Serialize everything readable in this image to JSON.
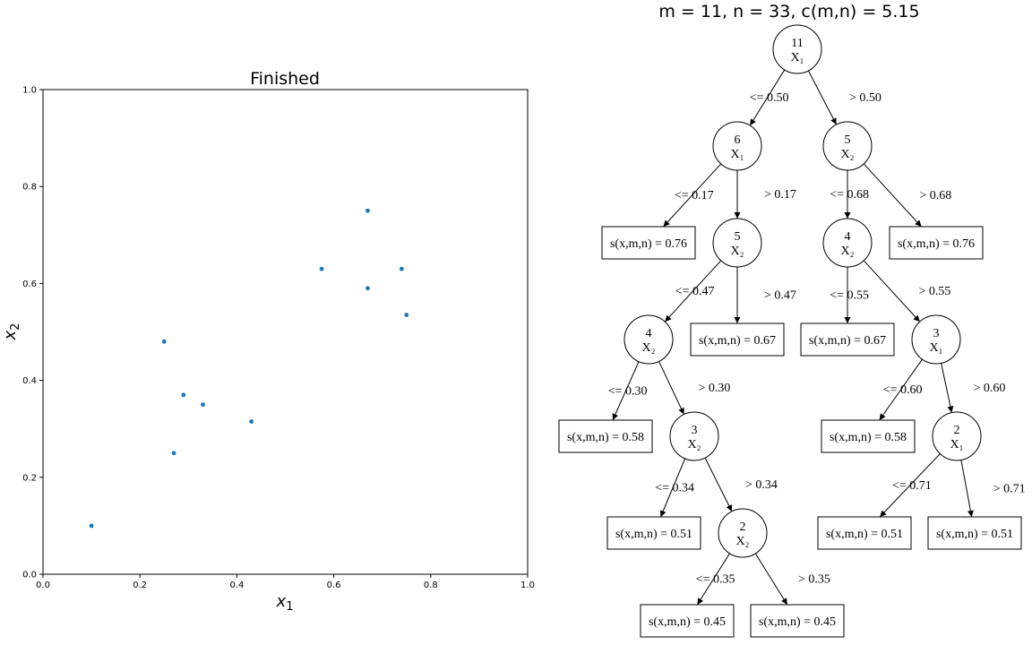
{
  "scatter": {
    "title": "Finished",
    "xlabel_base": "x",
    "xlabel_sub": "1",
    "ylabel_base": "x",
    "ylabel_sub": "2",
    "xlim": [
      0,
      1
    ],
    "ylim": [
      0,
      1
    ],
    "xticks": [
      "0.0",
      "0.2",
      "0.4",
      "0.6",
      "0.8",
      "1.0"
    ],
    "yticks": [
      "0.0",
      "0.2",
      "0.4",
      "0.6",
      "0.8",
      "1.0"
    ],
    "point_color": "#1f77b4"
  },
  "chart_data": {
    "type": "scatter",
    "title": "Finished",
    "xlabel": "x1",
    "ylabel": "x2",
    "xlim": [
      0,
      1
    ],
    "ylim": [
      0,
      1
    ],
    "grid": false,
    "points": [
      {
        "x": 0.1,
        "y": 0.1
      },
      {
        "x": 0.25,
        "y": 0.48
      },
      {
        "x": 0.27,
        "y": 0.25
      },
      {
        "x": 0.29,
        "y": 0.37
      },
      {
        "x": 0.33,
        "y": 0.35
      },
      {
        "x": 0.43,
        "y": 0.315
      },
      {
        "x": 0.575,
        "y": 0.63
      },
      {
        "x": 0.67,
        "y": 0.75
      },
      {
        "x": 0.67,
        "y": 0.59
      },
      {
        "x": 0.74,
        "y": 0.63
      },
      {
        "x": 0.75,
        "y": 0.535
      }
    ]
  },
  "tree": {
    "title": "m = 11, n = 33, c(m,n) = 5.15",
    "nodes": [
      {
        "id": "n0",
        "kind": "split",
        "count": "11",
        "var": "X₁"
      },
      {
        "id": "n1",
        "kind": "split",
        "count": "6",
        "var": "X₁"
      },
      {
        "id": "n2",
        "kind": "split",
        "count": "5",
        "var": "X₂"
      },
      {
        "id": "n3",
        "kind": "leaf",
        "text": "s(x,m,n) = 0.76"
      },
      {
        "id": "n4",
        "kind": "split",
        "count": "5",
        "var": "X₂"
      },
      {
        "id": "n5",
        "kind": "split",
        "count": "4",
        "var": "X₂"
      },
      {
        "id": "n6",
        "kind": "leaf",
        "text": "s(x,m,n) = 0.76"
      },
      {
        "id": "n7",
        "kind": "split",
        "count": "4",
        "var": "X₂"
      },
      {
        "id": "n8",
        "kind": "leaf",
        "text": "s(x,m,n) = 0.67"
      },
      {
        "id": "n9",
        "kind": "leaf",
        "text": "s(x,m,n) = 0.67"
      },
      {
        "id": "n10",
        "kind": "split",
        "count": "3",
        "var": "X₁"
      },
      {
        "id": "n11",
        "kind": "leaf",
        "text": "s(x,m,n) = 0.58"
      },
      {
        "id": "n12",
        "kind": "split",
        "count": "3",
        "var": "X₂"
      },
      {
        "id": "n13",
        "kind": "leaf",
        "text": "s(x,m,n) = 0.58"
      },
      {
        "id": "n14",
        "kind": "split",
        "count": "2",
        "var": "X₁"
      },
      {
        "id": "n15",
        "kind": "leaf",
        "text": "s(x,m,n) = 0.51"
      },
      {
        "id": "n16",
        "kind": "split",
        "count": "2",
        "var": "X₂"
      },
      {
        "id": "n17",
        "kind": "leaf",
        "text": "s(x,m,n) = 0.51"
      },
      {
        "id": "n18",
        "kind": "leaf",
        "text": "s(x,m,n) = 0.51"
      },
      {
        "id": "n19",
        "kind": "leaf",
        "text": "s(x,m,n) = 0.45"
      },
      {
        "id": "n20",
        "kind": "leaf",
        "text": "s(x,m,n) = 0.45"
      }
    ],
    "edges": [
      {
        "from": "n0",
        "to": "n1",
        "label": "<= 0.50"
      },
      {
        "from": "n0",
        "to": "n2",
        "label": "> 0.50"
      },
      {
        "from": "n1",
        "to": "n3",
        "label": "<= 0.17"
      },
      {
        "from": "n1",
        "to": "n4",
        "label": "> 0.17"
      },
      {
        "from": "n2",
        "to": "n5",
        "label": "<= 0.68"
      },
      {
        "from": "n2",
        "to": "n6",
        "label": "> 0.68"
      },
      {
        "from": "n4",
        "to": "n7",
        "label": "<= 0.47"
      },
      {
        "from": "n4",
        "to": "n8",
        "label": "> 0.47"
      },
      {
        "from": "n5",
        "to": "n9",
        "label": "<= 0.55"
      },
      {
        "from": "n5",
        "to": "n10",
        "label": "> 0.55"
      },
      {
        "from": "n7",
        "to": "n11",
        "label": "<= 0.30"
      },
      {
        "from": "n7",
        "to": "n12",
        "label": "> 0.30"
      },
      {
        "from": "n10",
        "to": "n13",
        "label": "<= 0.60"
      },
      {
        "from": "n10",
        "to": "n14",
        "label": "> 0.60"
      },
      {
        "from": "n12",
        "to": "n15",
        "label": "<= 0.34"
      },
      {
        "from": "n12",
        "to": "n16",
        "label": "> 0.34"
      },
      {
        "from": "n14",
        "to": "n17",
        "label": "<= 0.71"
      },
      {
        "from": "n14",
        "to": "n18",
        "label": "> 0.71"
      },
      {
        "from": "n16",
        "to": "n19",
        "label": "<= 0.35"
      },
      {
        "from": "n16",
        "to": "n20",
        "label": "> 0.35"
      }
    ]
  }
}
